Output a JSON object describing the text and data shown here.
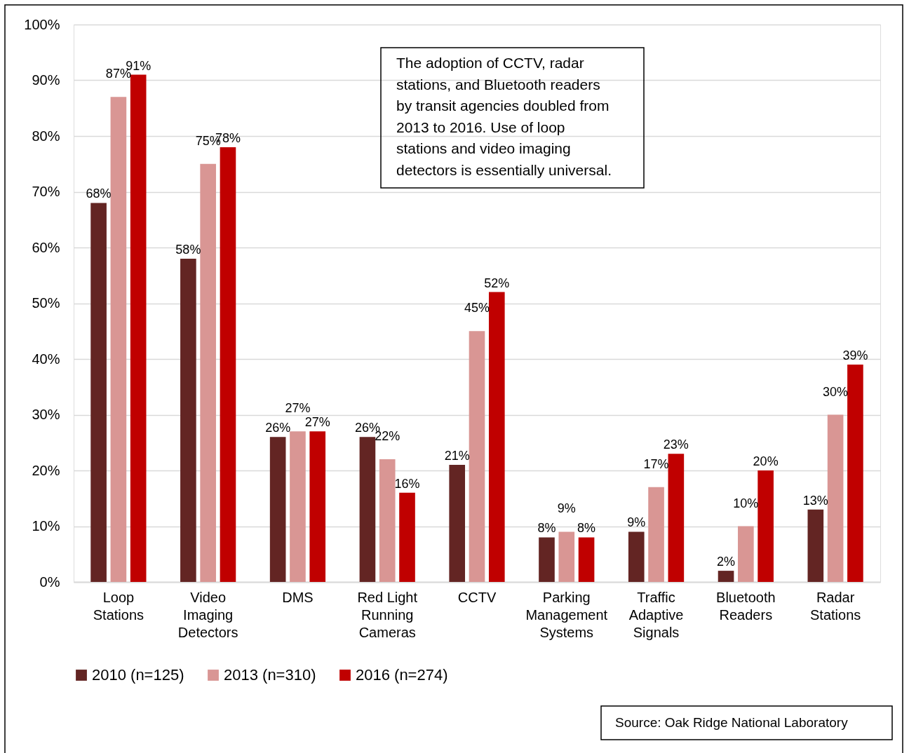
{
  "chart_data": {
    "type": "bar",
    "categories": [
      "Loop\nStations",
      "Video\nImaging\nDetectors",
      "DMS",
      "Red Light\nRunning\nCameras",
      "CCTV",
      "Parking\nManagement\nSystems",
      "Traffic\nAdaptive\nSignals",
      "Bluetooth\nReaders",
      "Radar\nStations"
    ],
    "series": [
      {
        "name": "2010 (n=125)",
        "color": "#632523",
        "values": [
          68,
          58,
          26,
          26,
          21,
          8,
          9,
          2,
          13
        ],
        "value_labels": [
          "68%",
          "58%",
          "26%",
          "26%",
          "21%",
          "8%",
          "9%",
          "2%",
          "13%"
        ]
      },
      {
        "name": "2013 (n=310)",
        "color": "#d99694",
        "values": [
          87,
          75,
          27,
          22,
          45,
          9,
          17,
          10,
          30
        ],
        "value_labels": [
          "87%",
          "75%",
          "27%",
          "22%",
          "45%",
          "9%",
          "17%",
          "10%",
          "30%"
        ]
      },
      {
        "name": "2016 (n=274)",
        "color": "#c00000",
        "values": [
          91,
          78,
          27,
          16,
          52,
          8,
          23,
          20,
          39
        ],
        "value_labels": [
          "91%",
          "78%",
          "27%",
          "16%",
          "52%",
          "8%",
          "23%",
          "20%",
          "39%"
        ]
      }
    ],
    "ylim": [
      0,
      100
    ],
    "yticks": [
      {
        "value": 0,
        "label": "0%"
      },
      {
        "value": 10,
        "label": "10%"
      },
      {
        "value": 20,
        "label": "20%"
      },
      {
        "value": 30,
        "label": "30%"
      },
      {
        "value": 40,
        "label": "40%"
      },
      {
        "value": 50,
        "label": "50%"
      },
      {
        "value": 60,
        "label": "60%"
      },
      {
        "value": 70,
        "label": "70%"
      },
      {
        "value": 80,
        "label": "80%"
      },
      {
        "value": 90,
        "label": "90%"
      },
      {
        "value": 100,
        "label": "100%"
      }
    ],
    "grid": "y",
    "legend": "bottom",
    "annotations": [
      "The adoption of CCTV, radar\nstations, and Bluetooth readers\nby transit agencies doubled from\n2013 to 2016.  Use of loop\nstations and video imaging\ndetectors is essentially universal.",
      "Source:  Oak Ridge National Laboratory"
    ]
  }
}
